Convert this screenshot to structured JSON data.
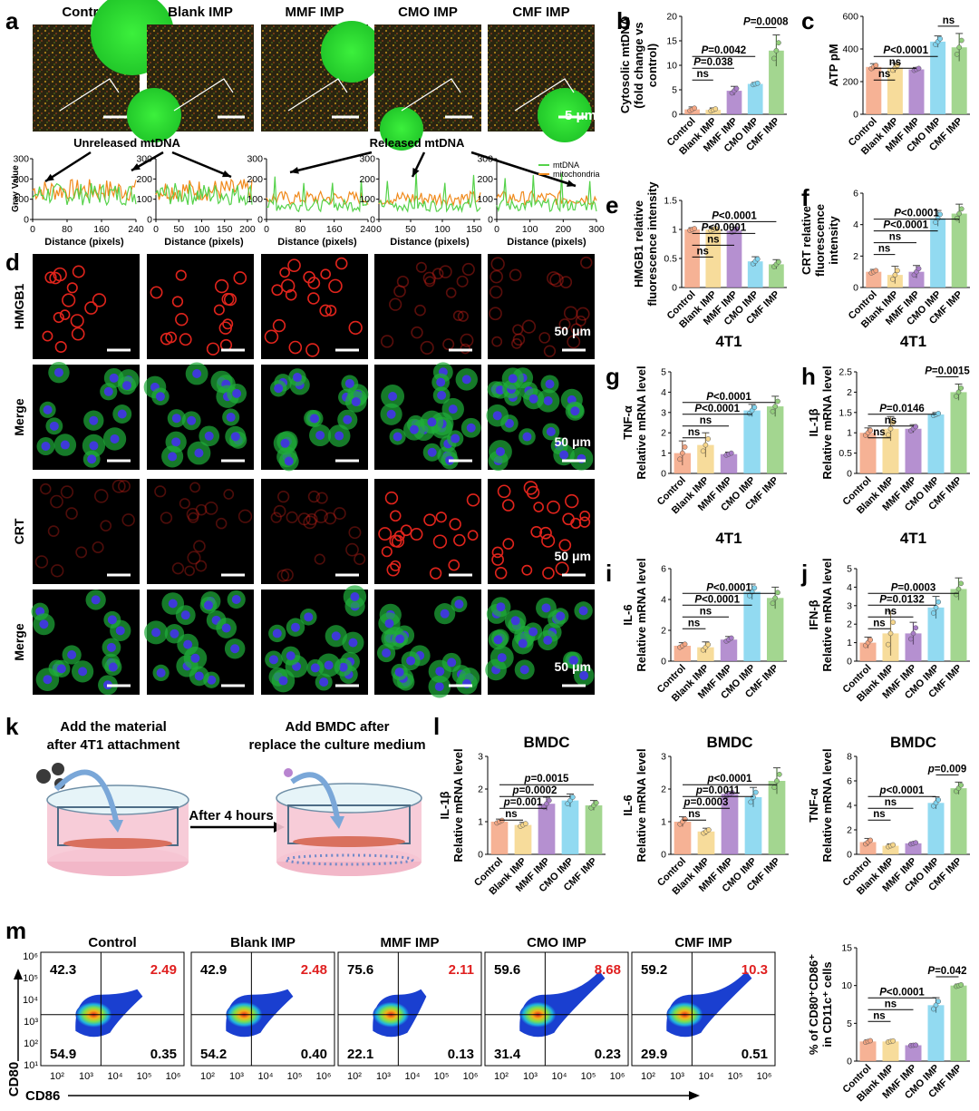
{
  "groups": [
    "Control",
    "Blank IMP",
    "MMF IMP",
    "CMO IMP",
    "CMF IMP"
  ],
  "colors": {
    "Control": "#f4a582",
    "Blank IMP": "#f6d68a",
    "MMF IMP": "#a87cc8",
    "CMO IMP": "#7fd3ee",
    "CMF IMP": "#93cf7c",
    "mtDNA": "#55d24a",
    "mitochondria": "#f08a1c",
    "microscopy_bg": "#000000"
  },
  "panel_a": {
    "letter": "a",
    "scale_label": "5 μm",
    "annotations": {
      "unreleased": "Unreleased mtDNA",
      "released": "Released mtDNA"
    },
    "ylabel": "Gray Value",
    "xlabel": "Distance (pixels)",
    "legend": [
      "mtDNA",
      "mitochondria"
    ]
  },
  "panel_d": {
    "letter": "d",
    "rows": [
      "HMGB1",
      "Merge",
      "CRT",
      "Merge"
    ],
    "scale_label": "50 μm"
  },
  "panel_k": {
    "letter": "k",
    "step1": "Add the material\nafter 4T1 attachment",
    "step2": "Add BMDC after\nreplace the culture medium",
    "arrow_label": "After 4 hours"
  },
  "panel_l": {
    "letter": "l"
  },
  "panel_m": {
    "letter": "m",
    "xlabel": "CD86",
    "ylabel": "CD80",
    "x_ticks": [
      "10²",
      "10³",
      "10⁴",
      "10⁵",
      "10⁶"
    ],
    "y_ticks": [
      "10⁶",
      "10⁵",
      "10⁴",
      "10³",
      "10²",
      "10¹"
    ]
  },
  "chart_data": [
    {
      "id": "a",
      "type": "line",
      "title": "Line profiles",
      "xlabel": "Distance (pixels)",
      "ylabel": "Gray Value",
      "series": [
        "mtDNA",
        "mitochondria"
      ],
      "panels": [
        {
          "group": "Control",
          "xlim": [
            0,
            240
          ],
          "x_ticks": [
            0,
            80,
            160,
            240
          ],
          "ylim": [
            0,
            300
          ],
          "y_ticks": [
            0,
            100,
            200,
            300
          ]
        },
        {
          "group": "Blank IMP",
          "xlim": [
            0,
            210
          ],
          "x_ticks": [
            0,
            50,
            100,
            150,
            200
          ],
          "ylim": [
            0,
            300
          ],
          "y_ticks": [
            0,
            100,
            200,
            300
          ]
        },
        {
          "group": "MMF IMP",
          "xlim": [
            0,
            240
          ],
          "x_ticks": [
            0,
            80,
            160,
            240
          ],
          "ylim": [
            0,
            300
          ],
          "y_ticks": [
            0,
            100,
            200,
            300
          ]
        },
        {
          "group": "CMO IMP",
          "xlim": [
            0,
            160
          ],
          "x_ticks": [
            0,
            50,
            100,
            150
          ],
          "ylim": [
            0,
            300
          ],
          "y_ticks": [
            0,
            100,
            200,
            300
          ]
        },
        {
          "group": "CMF IMP",
          "xlim": [
            0,
            300
          ],
          "x_ticks": [
            0,
            100,
            200,
            300
          ],
          "ylim": [
            0,
            300
          ],
          "y_ticks": [
            0,
            100,
            200,
            300
          ]
        }
      ]
    },
    {
      "id": "b",
      "type": "bar",
      "ylabel": "Cytosolic mtDNA\n(fold change vs\ncontrol)",
      "categories": [
        "Control",
        "Blank IMP",
        "MMF IMP",
        "CMO IMP",
        "CMF IMP"
      ],
      "values": [
        1.0,
        0.9,
        4.8,
        6.2,
        13.0
      ],
      "errors": [
        0.5,
        0.4,
        0.9,
        0.3,
        3.2
      ],
      "ylim": [
        0,
        20
      ],
      "y_ticks": [
        0,
        5,
        10,
        15,
        20
      ],
      "sig": [
        {
          "from": "Control",
          "to": "Blank IMP",
          "label": "ns"
        },
        {
          "from": "Control",
          "to": "MMF IMP",
          "label": "P=0.038"
        },
        {
          "from": "Control",
          "to": "CMO IMP",
          "label": "P=0.0042"
        },
        {
          "from": "CMO IMP",
          "to": "CMF IMP",
          "label": "P=0.0008"
        }
      ]
    },
    {
      "id": "c",
      "type": "bar",
      "ylabel": "ATP pM",
      "categories": [
        "Control",
        "Blank IMP",
        "MMF IMP",
        "CMO IMP",
        "CMF IMP"
      ],
      "values": [
        290,
        285,
        275,
        445,
        410
      ],
      "errors": [
        20,
        30,
        12,
        35,
        85
      ],
      "ylim": [
        0,
        600
      ],
      "y_ticks": [
        0,
        200,
        400,
        600
      ],
      "sig": [
        {
          "from": "Control",
          "to": "Blank IMP",
          "label": "ns"
        },
        {
          "from": "Control",
          "to": "MMF IMP",
          "label": "ns"
        },
        {
          "from": "Control",
          "to": "CMO IMP",
          "label": "P<0.0001"
        },
        {
          "from": "CMO IMP",
          "to": "CMF IMP",
          "label": "ns"
        }
      ]
    },
    {
      "id": "e",
      "type": "bar",
      "ylabel": "HMGB1 relative\nfluorescence intensity",
      "categories": [
        "Control",
        "Blank IMP",
        "MMF IMP",
        "CMO IMP",
        "CMF IMP"
      ],
      "values": [
        1.0,
        1.0,
        0.98,
        0.45,
        0.4
      ],
      "errors": [
        0.03,
        0.04,
        0.06,
        0.08,
        0.08
      ],
      "ylim": [
        0,
        1.5
      ],
      "y_ticks": [
        0.0,
        0.5,
        1.0,
        1.5
      ],
      "sig": [
        {
          "from": "Control",
          "to": "Blank IMP",
          "label": "ns"
        },
        {
          "from": "Control",
          "to": "MMF IMP",
          "label": "ns"
        },
        {
          "from": "Control",
          "to": "CMO IMP",
          "label": "P<0.0001"
        },
        {
          "from": "Control",
          "to": "CMF IMP",
          "label": "P<0.0001"
        }
      ]
    },
    {
      "id": "f",
      "type": "bar",
      "ylabel": "CRT relative\nfluorescence\nintensity",
      "categories": [
        "Control",
        "Blank IMP",
        "MMF IMP",
        "CMO IMP",
        "CMF IMP"
      ],
      "values": [
        1.0,
        0.8,
        1.0,
        4.4,
        4.7
      ],
      "errors": [
        0.15,
        0.55,
        0.4,
        0.5,
        0.6
      ],
      "ylim": [
        0,
        6
      ],
      "y_ticks": [
        0,
        2,
        4,
        6
      ],
      "sig": [
        {
          "from": "Control",
          "to": "Blank IMP",
          "label": "ns"
        },
        {
          "from": "Control",
          "to": "MMF IMP",
          "label": "ns"
        },
        {
          "from": "Control",
          "to": "CMO IMP",
          "label": "P<0.0001"
        },
        {
          "from": "Control",
          "to": "CMF IMP",
          "label": "P<0.0001"
        }
      ]
    },
    {
      "id": "g",
      "type": "bar",
      "title": "4T1",
      "ylabel": "TNF-α\nRelative mRNA level",
      "categories": [
        "Control",
        "Blank IMP",
        "MMF IMP",
        "CMO IMP",
        "CMF IMP"
      ],
      "values": [
        1.0,
        1.4,
        0.95,
        3.1,
        3.3
      ],
      "errors": [
        0.6,
        0.6,
        0.1,
        0.3,
        0.5
      ],
      "ylim": [
        0,
        5
      ],
      "y_ticks": [
        0,
        1,
        2,
        3,
        4,
        5
      ],
      "sig": [
        {
          "from": "Control",
          "to": "Blank IMP",
          "label": "ns"
        },
        {
          "from": "Control",
          "to": "MMF IMP",
          "label": "ns"
        },
        {
          "from": "Control",
          "to": "CMO IMP",
          "label": "P<0.0001"
        },
        {
          "from": "Control",
          "to": "CMF IMP",
          "label": "P<0.0001"
        }
      ]
    },
    {
      "id": "h",
      "type": "bar",
      "title": "4T1",
      "ylabel": "IL-1β\nRelative mRNA level",
      "categories": [
        "Control",
        "Blank IMP",
        "MMF IMP",
        "CMO IMP",
        "CMF IMP"
      ],
      "values": [
        1.0,
        1.1,
        1.1,
        1.45,
        2.0
      ],
      "errors": [
        0.12,
        0.3,
        0.1,
        0.05,
        0.2
      ],
      "ylim": [
        0,
        2.5
      ],
      "y_ticks": [
        0.0,
        0.5,
        1.0,
        1.5,
        2.0,
        2.5
      ],
      "sig": [
        {
          "from": "Control",
          "to": "Blank IMP",
          "label": "ns"
        },
        {
          "from": "Control",
          "to": "MMF IMP",
          "label": "ns"
        },
        {
          "from": "Control",
          "to": "CMO IMP",
          "label": "P=0.0146"
        },
        {
          "from": "CMO IMP",
          "to": "CMF IMP",
          "label": "P=0.0015"
        }
      ]
    },
    {
      "id": "i",
      "type": "bar",
      "title": "4T1",
      "ylabel": "IL-6\nRelative mRNA level",
      "categories": [
        "Control",
        "Blank IMP",
        "MMF IMP",
        "CMO IMP",
        "CMF IMP"
      ],
      "values": [
        1.0,
        0.9,
        1.4,
        4.5,
        4.1
      ],
      "errors": [
        0.2,
        0.35,
        0.2,
        0.5,
        0.7
      ],
      "ylim": [
        0,
        6
      ],
      "y_ticks": [
        0,
        2,
        4,
        6
      ],
      "sig": [
        {
          "from": "Control",
          "to": "Blank IMP",
          "label": "ns"
        },
        {
          "from": "Control",
          "to": "MMF IMP",
          "label": "ns"
        },
        {
          "from": "Control",
          "to": "CMO IMP",
          "label": "P<0.0001"
        },
        {
          "from": "Control",
          "to": "CMF IMP",
          "label": "P<0.0001"
        }
      ]
    },
    {
      "id": "j",
      "type": "bar",
      "title": "4T1",
      "ylabel": "IFN-β\nRelative mRNA level",
      "categories": [
        "Control",
        "Blank IMP",
        "MMF IMP",
        "CMO IMP",
        "CMF IMP"
      ],
      "values": [
        1.0,
        1.5,
        1.5,
        2.9,
        3.9
      ],
      "errors": [
        0.3,
        1.2,
        0.6,
        0.6,
        0.6
      ],
      "ylim": [
        0,
        5
      ],
      "y_ticks": [
        0,
        1,
        2,
        3,
        4,
        5
      ],
      "sig": [
        {
          "from": "Control",
          "to": "Blank IMP",
          "label": "ns"
        },
        {
          "from": "Control",
          "to": "MMF IMP",
          "label": "ns"
        },
        {
          "from": "Control",
          "to": "CMO IMP",
          "label": "P=0.0132"
        },
        {
          "from": "Control",
          "to": "CMF IMP",
          "label": "P=0.0003"
        }
      ]
    },
    {
      "id": "l1",
      "type": "bar",
      "title": "BMDC",
      "ylabel": "IL-1β\nRelative mRNA level",
      "categories": [
        "Control",
        "Blank IMP",
        "MMF IMP",
        "CMO IMP",
        "CMF IMP"
      ],
      "values": [
        1.0,
        0.9,
        1.55,
        1.65,
        1.5
      ],
      "errors": [
        0.08,
        0.08,
        0.2,
        0.2,
        0.15
      ],
      "ylim": [
        0,
        3
      ],
      "y_ticks": [
        0,
        1,
        2,
        3
      ],
      "sig": [
        {
          "from": "Control",
          "to": "Blank IMP",
          "label": "ns"
        },
        {
          "from": "Control",
          "to": "MMF IMP",
          "label": "p=0.001"
        },
        {
          "from": "Control",
          "to": "CMO IMP",
          "label": "p=0.0002"
        },
        {
          "from": "Control",
          "to": "CMF IMP",
          "label": "p=0.0015"
        }
      ]
    },
    {
      "id": "l2",
      "type": "bar",
      "title": "BMDC",
      "ylabel": "IL-6\nRelative mRNA level",
      "categories": [
        "Control",
        "Blank IMP",
        "MMF IMP",
        "CMO IMP",
        "CMF IMP"
      ],
      "values": [
        1.0,
        0.7,
        1.85,
        1.75,
        2.25
      ],
      "errors": [
        0.15,
        0.1,
        0.08,
        0.3,
        0.4
      ],
      "ylim": [
        0,
        3
      ],
      "y_ticks": [
        0,
        1,
        2,
        3
      ],
      "sig": [
        {
          "from": "Control",
          "to": "Blank IMP",
          "label": "ns"
        },
        {
          "from": "Control",
          "to": "MMF IMP",
          "label": "p=0.0003"
        },
        {
          "from": "Control",
          "to": "CMO IMP",
          "label": "p=0.0011"
        },
        {
          "from": "Control",
          "to": "CMF IMP",
          "label": "p<0.0001"
        }
      ]
    },
    {
      "id": "l3",
      "type": "bar",
      "title": "BMDC",
      "ylabel": "TNF-α\nRelative mRNA level",
      "categories": [
        "Control",
        "Blank IMP",
        "MMF IMP",
        "CMO IMP",
        "CMF IMP"
      ],
      "values": [
        1.0,
        0.7,
        0.9,
        4.2,
        5.4
      ],
      "errors": [
        0.3,
        0.15,
        0.1,
        0.5,
        0.5
      ],
      "ylim": [
        0,
        8
      ],
      "y_ticks": [
        0,
        2,
        4,
        6,
        8
      ],
      "sig": [
        {
          "from": "Control",
          "to": "Blank IMP",
          "label": "ns"
        },
        {
          "from": "Control",
          "to": "MMF IMP",
          "label": "ns"
        },
        {
          "from": "Control",
          "to": "CMO IMP",
          "label": "p<0.0001"
        },
        {
          "from": "CMO IMP",
          "to": "CMF IMP",
          "label": "p=0.009"
        }
      ]
    },
    {
      "id": "m_bar",
      "type": "bar",
      "ylabel": "% of CD80⁺CD86⁺\nin CD11c⁺ cells",
      "categories": [
        "Control",
        "Blank IMP",
        "MMF IMP",
        "CMO IMP",
        "CMF IMP"
      ],
      "values": [
        2.6,
        2.6,
        2.1,
        7.4,
        10.0
      ],
      "errors": [
        0.2,
        0.15,
        0.05,
        1.0,
        0.2
      ],
      "ylim": [
        0,
        15
      ],
      "y_ticks": [
        0,
        5,
        10,
        15
      ],
      "sig": [
        {
          "from": "Control",
          "to": "Blank IMP",
          "label": "ns"
        },
        {
          "from": "Control",
          "to": "MMF IMP",
          "label": "ns"
        },
        {
          "from": "Control",
          "to": "CMO IMP",
          "label": "P<0.0001"
        },
        {
          "from": "CMO IMP",
          "to": "CMF IMP",
          "label": "P=0.042"
        }
      ]
    },
    {
      "id": "m_flow",
      "type": "scatter",
      "xlabel": "CD86",
      "ylabel": "CD80",
      "quadrants": [
        {
          "group": "Control",
          "UL": "42.3",
          "UR": "2.49",
          "LL": "54.9",
          "LR": "0.35"
        },
        {
          "group": "Blank IMP",
          "UL": "42.9",
          "UR": "2.48",
          "LL": "54.2",
          "LR": "0.40"
        },
        {
          "group": "MMF IMP",
          "UL": "75.6",
          "UR": "2.11",
          "LL": "22.1",
          "LR": "0.13"
        },
        {
          "group": "CMO IMP",
          "UL": "59.6",
          "UR": "8.68",
          "LL": "31.4",
          "LR": "0.23"
        },
        {
          "group": "CMF IMP",
          "UL": "59.2",
          "UR": "10.3",
          "LL": "29.9",
          "LR": "0.51"
        }
      ]
    }
  ]
}
